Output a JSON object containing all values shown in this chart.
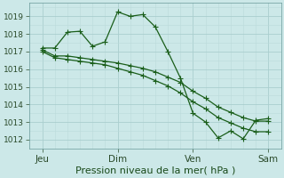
{
  "background_color": "#cce8e8",
  "grid_major_color": "#aacece",
  "grid_minor_color": "#bbdada",
  "line_color": "#1a5e1a",
  "title": "Pression niveau de la mer( hPa )",
  "ylabel_fontsize": 6.5,
  "xlabel_fontsize": 7.5,
  "title_fontsize": 8,
  "ylim": [
    1011.5,
    1019.75
  ],
  "yticks": [
    1012,
    1013,
    1014,
    1015,
    1016,
    1017,
    1018,
    1019
  ],
  "xtick_labels": [
    "Jeu",
    "Dim",
    "Ven",
    "Sam"
  ],
  "xtick_positions": [
    0,
    36,
    72,
    108
  ],
  "xlim": [
    -6,
    114
  ],
  "line1_x": [
    0,
    6,
    12,
    18,
    24,
    30,
    36,
    42,
    48,
    54,
    60,
    66,
    72,
    78,
    84,
    90,
    96,
    102,
    108
  ],
  "line1_y": [
    1017.2,
    1017.2,
    1018.1,
    1018.15,
    1017.3,
    1017.55,
    1019.25,
    1019.0,
    1019.1,
    1018.4,
    1017.0,
    1015.5,
    1013.5,
    1013.0,
    1012.1,
    1012.5,
    1012.05,
    1013.1,
    1013.2
  ],
  "line2_x": [
    0,
    6,
    12,
    18,
    24,
    30,
    36,
    42,
    48,
    54,
    60,
    66,
    72,
    78,
    84,
    90,
    96,
    102,
    108
  ],
  "line2_y": [
    1017.1,
    1016.75,
    1016.75,
    1016.65,
    1016.55,
    1016.45,
    1016.35,
    1016.2,
    1016.05,
    1015.85,
    1015.55,
    1015.25,
    1014.75,
    1014.35,
    1013.85,
    1013.55,
    1013.25,
    1013.05,
    1013.05
  ],
  "line3_x": [
    0,
    6,
    12,
    18,
    24,
    30,
    36,
    42,
    48,
    54,
    60,
    66,
    72,
    78,
    84,
    90,
    96,
    102,
    108
  ],
  "line3_y": [
    1017.0,
    1016.65,
    1016.55,
    1016.45,
    1016.35,
    1016.25,
    1016.05,
    1015.85,
    1015.65,
    1015.35,
    1015.05,
    1014.65,
    1014.15,
    1013.75,
    1013.25,
    1012.95,
    1012.65,
    1012.45,
    1012.45
  ]
}
